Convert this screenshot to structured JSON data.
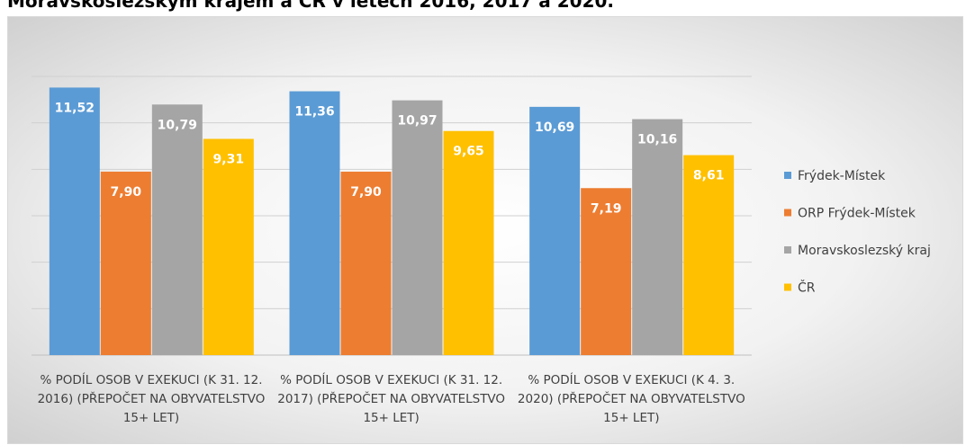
{
  "chart_data": {
    "type": "bar",
    "title": "Moravskoslezským krajem a ČR v letech 2016, 2017 a 2020.",
    "categories": [
      "% PODÍL OSOB V EXEKUCI (K 31. 12. 2016) (PŘEPOČET NA OBYVATELSTVO 15+ LET)",
      "% PODÍL OSOB V EXEKUCI (K 31. 12. 2017) (PŘEPOČET NA OBYVATELSTVO 15+ LET)",
      "% PODÍL OSOB V EXEKUCI (K 4. 3. 2020) (PŘEPOČET NA OBYVATELSTVO 15+ LET)"
    ],
    "series": [
      {
        "name": "Frýdek-Místek",
        "color": "#5b9bd5",
        "values": [
          11.52,
          11.36,
          10.69
        ],
        "value_labels": [
          "11,52",
          "11,36",
          "10,69"
        ]
      },
      {
        "name": "ORP Frýdek-Místek",
        "color": "#ed7d31",
        "values": [
          7.9,
          7.9,
          7.19
        ],
        "value_labels": [
          "7,90",
          "7,90",
          "7,19"
        ]
      },
      {
        "name": "Moravskoslezský kraj",
        "color": "#a5a5a5",
        "values": [
          10.79,
          10.97,
          10.16
        ],
        "value_labels": [
          "10,79",
          "10,97",
          "10,16"
        ]
      },
      {
        "name": "ČR",
        "color": "#ffc000",
        "values": [
          9.31,
          9.65,
          8.61
        ],
        "value_labels": [
          "9,31",
          "9,65",
          "8,61"
        ]
      }
    ],
    "ylim": [
      0,
      12
    ],
    "yticks": [
      0,
      2,
      4,
      6,
      8,
      10,
      12
    ],
    "grid": true,
    "legend": "right"
  }
}
